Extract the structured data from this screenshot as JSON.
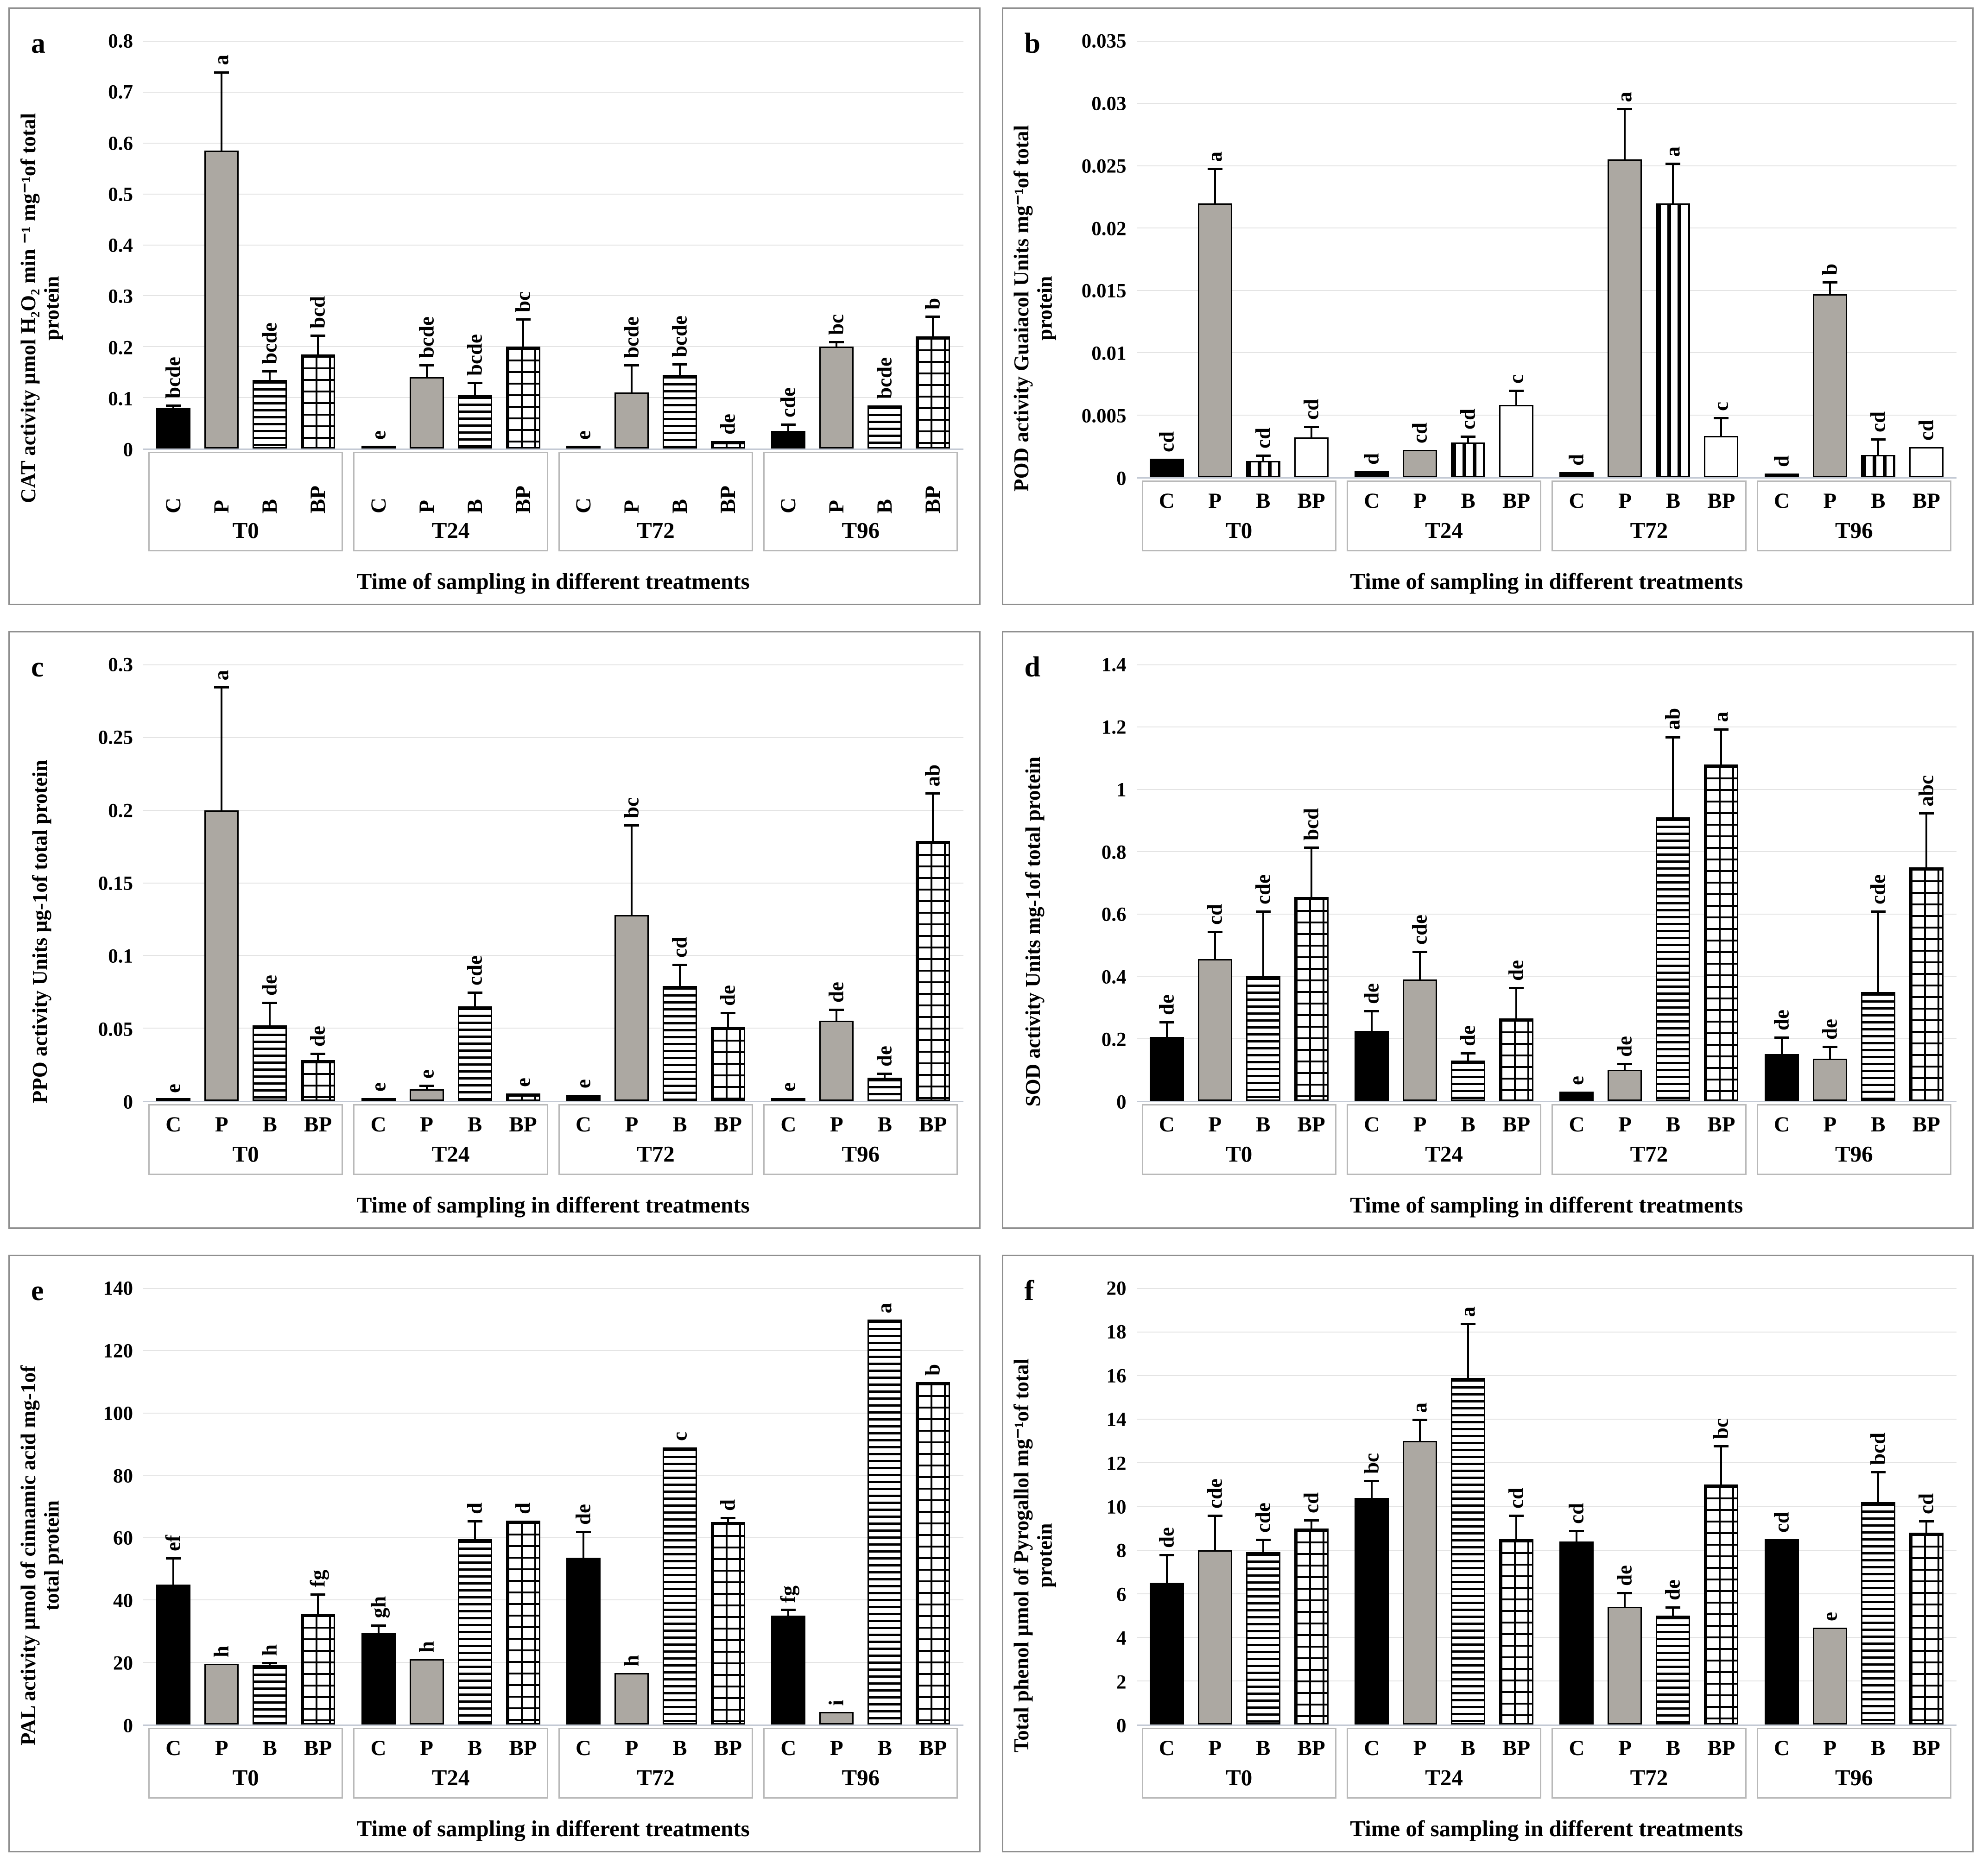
{
  "figure": {
    "x_axis_title": "Time of sampling in different treatments",
    "treatments": [
      "C",
      "P",
      "B",
      "BP"
    ],
    "time_groups": [
      "T0",
      "T24",
      "T72",
      "T96"
    ],
    "colors": {
      "bar_black": "#000000",
      "bar_gray": "#ACA8A2",
      "gridline": "#E4E4E4",
      "axis_line": "#C3C9D4",
      "panel_border": "#8F8F8F",
      "group_box_border": "#B9B9B9"
    }
  },
  "chart_data": [
    {
      "id": "a",
      "type": "bar",
      "ylabel": "CAT activity µmol H₂O₂ min ⁻¹ mg⁻¹of total\nprotein",
      "xlabel": "Time of sampling in different treatments",
      "ymax": 0.8,
      "yticks": [
        "0",
        "0.1",
        "0.2",
        "0.3",
        "0.4",
        "0.5",
        "0.6",
        "0.7",
        "0.8"
      ],
      "rotated_x_labels": true,
      "patterns": {
        "C": "black",
        "P": "gray",
        "B": "hstripe",
        "BP": "brick"
      },
      "groups": [
        {
          "label": "T0",
          "bars": [
            {
              "treatment": "C",
              "value": 0.08,
              "err": 0.006,
              "letter": "bcde"
            },
            {
              "treatment": "P",
              "value": 0.585,
              "err": 0.155,
              "letter": "a"
            },
            {
              "treatment": "B",
              "value": 0.135,
              "err": 0.018,
              "letter": "bcde"
            },
            {
              "treatment": "BP",
              "value": 0.185,
              "err": 0.038,
              "letter": "bcd"
            }
          ]
        },
        {
          "label": "T24",
          "bars": [
            {
              "treatment": "C",
              "value": 0.005,
              "err": 0,
              "letter": "e"
            },
            {
              "treatment": "P",
              "value": 0.14,
              "err": 0.025,
              "letter": "bcde"
            },
            {
              "treatment": "B",
              "value": 0.105,
              "err": 0.025,
              "letter": "bcde"
            },
            {
              "treatment": "BP",
              "value": 0.2,
              "err": 0.055,
              "letter": "bc"
            }
          ]
        },
        {
          "label": "T72",
          "bars": [
            {
              "treatment": "C",
              "value": 0.005,
              "err": 0,
              "letter": "e"
            },
            {
              "treatment": "P",
              "value": 0.11,
              "err": 0.055,
              "letter": "bcde"
            },
            {
              "treatment": "B",
              "value": 0.145,
              "err": 0.022,
              "letter": "bcde"
            },
            {
              "treatment": "BP",
              "value": 0.015,
              "err": 0,
              "letter": "de"
            }
          ]
        },
        {
          "label": "T96",
          "bars": [
            {
              "treatment": "C",
              "value": 0.035,
              "err": 0.013,
              "letter": "cde"
            },
            {
              "treatment": "P",
              "value": 0.2,
              "err": 0.01,
              "letter": "bc"
            },
            {
              "treatment": "B",
              "value": 0.085,
              "err": 0,
              "letter": "bcde"
            },
            {
              "treatment": "BP",
              "value": 0.22,
              "err": 0.04,
              "letter": "b"
            }
          ]
        }
      ]
    },
    {
      "id": "b",
      "type": "bar",
      "ylabel": "POD activity Guaiacol Units mg⁻¹of total\nprotein",
      "xlabel": "Time of sampling in different treatments",
      "ymax": 0.035,
      "yticks": [
        "0",
        "0.005",
        "0.01",
        "0.015",
        "0.02",
        "0.025",
        "0.03",
        "0.035"
      ],
      "rotated_x_labels": false,
      "patterns": {
        "C": "black",
        "P": "gray",
        "B": "vstripe",
        "BP": "white"
      },
      "groups": [
        {
          "label": "T0",
          "bars": [
            {
              "treatment": "C",
              "value": 0.0015,
              "err": 0,
              "letter": "cd"
            },
            {
              "treatment": "P",
              "value": 0.022,
              "err": 0.0028,
              "letter": "a"
            },
            {
              "treatment": "B",
              "value": 0.0013,
              "err": 0.0005,
              "letter": "cd"
            },
            {
              "treatment": "BP",
              "value": 0.0032,
              "err": 0.0009,
              "letter": "cd"
            }
          ]
        },
        {
          "label": "T24",
          "bars": [
            {
              "treatment": "C",
              "value": 0.0005,
              "err": 0,
              "letter": "d"
            },
            {
              "treatment": "P",
              "value": 0.0022,
              "err": 0,
              "letter": "cd"
            },
            {
              "treatment": "B",
              "value": 0.0028,
              "err": 0.0005,
              "letter": "cd"
            },
            {
              "treatment": "BP",
              "value": 0.0058,
              "err": 0.0012,
              "letter": "c"
            }
          ]
        },
        {
          "label": "T72",
          "bars": [
            {
              "treatment": "C",
              "value": 0.0004,
              "err": 0,
              "letter": "d"
            },
            {
              "treatment": "P",
              "value": 0.0255,
              "err": 0.0041,
              "letter": "a"
            },
            {
              "treatment": "B",
              "value": 0.022,
              "err": 0.0032,
              "letter": "a"
            },
            {
              "treatment": "BP",
              "value": 0.0033,
              "err": 0.0015,
              "letter": "c"
            }
          ]
        },
        {
          "label": "T96",
          "bars": [
            {
              "treatment": "C",
              "value": 0.0003,
              "err": 0,
              "letter": "d"
            },
            {
              "treatment": "P",
              "value": 0.0147,
              "err": 0.001,
              "letter": "b"
            },
            {
              "treatment": "B",
              "value": 0.0018,
              "err": 0.0013,
              "letter": "cd"
            },
            {
              "treatment": "BP",
              "value": 0.0024,
              "err": 0,
              "letter": "cd"
            }
          ]
        }
      ]
    },
    {
      "id": "c",
      "type": "bar",
      "ylabel": "PPO activity Units µg-1of total protein",
      "xlabel": "Time of sampling in different treatments",
      "ymax": 0.3,
      "yticks": [
        "0",
        "0.05",
        "0.1",
        "0.15",
        "0.2",
        "0.25",
        "0.3"
      ],
      "rotated_x_labels": false,
      "patterns": {
        "C": "black",
        "P": "gray",
        "B": "hstripe",
        "BP": "brick"
      },
      "groups": [
        {
          "label": "T0",
          "bars": [
            {
              "treatment": "C",
              "value": 0.001,
              "err": 0,
              "letter": "e"
            },
            {
              "treatment": "P",
              "value": 0.2,
              "err": 0.085,
              "letter": "a"
            },
            {
              "treatment": "B",
              "value": 0.052,
              "err": 0.016,
              "letter": "de"
            },
            {
              "treatment": "BP",
              "value": 0.028,
              "err": 0.005,
              "letter": "de"
            }
          ]
        },
        {
          "label": "T24",
          "bars": [
            {
              "treatment": "C",
              "value": 0.002,
              "err": 0,
              "letter": "e"
            },
            {
              "treatment": "P",
              "value": 0.008,
              "err": 0.003,
              "letter": "e"
            },
            {
              "treatment": "B",
              "value": 0.065,
              "err": 0.01,
              "letter": "cde"
            },
            {
              "treatment": "BP",
              "value": 0.005,
              "err": 0,
              "letter": "e"
            }
          ]
        },
        {
          "label": "T72",
          "bars": [
            {
              "treatment": "C",
              "value": 0.004,
              "err": 0,
              "letter": "e"
            },
            {
              "treatment": "P",
              "value": 0.128,
              "err": 0.062,
              "letter": "bc"
            },
            {
              "treatment": "B",
              "value": 0.079,
              "err": 0.015,
              "letter": "cd"
            },
            {
              "treatment": "BP",
              "value": 0.051,
              "err": 0.01,
              "letter": "de"
            }
          ]
        },
        {
          "label": "T96",
          "bars": [
            {
              "treatment": "C",
              "value": 0.002,
              "err": 0,
              "letter": "e"
            },
            {
              "treatment": "P",
              "value": 0.055,
              "err": 0.008,
              "letter": "de"
            },
            {
              "treatment": "B",
              "value": 0.016,
              "err": 0.003,
              "letter": "de"
            },
            {
              "treatment": "BP",
              "value": 0.179,
              "err": 0.033,
              "letter": "ab"
            }
          ]
        }
      ]
    },
    {
      "id": "d",
      "type": "bar",
      "ylabel": "SOD activity Units mg-1of total protein",
      "xlabel": "Time of sampling in different treatments",
      "ymax": 1.4,
      "yticks": [
        "0",
        "0.2",
        "0.4",
        "0.6",
        "0.8",
        "1",
        "1.2",
        "1.4"
      ],
      "rotated_x_labels": false,
      "patterns": {
        "C": "black",
        "P": "gray",
        "B": "hstripe",
        "BP": "brick"
      },
      "groups": [
        {
          "label": "T0",
          "bars": [
            {
              "treatment": "C",
              "value": 0.205,
              "err": 0.05,
              "letter": "de"
            },
            {
              "treatment": "P",
              "value": 0.455,
              "err": 0.09,
              "letter": "cd"
            },
            {
              "treatment": "B",
              "value": 0.4,
              "err": 0.21,
              "letter": "cde"
            },
            {
              "treatment": "BP",
              "value": 0.655,
              "err": 0.16,
              "letter": "bcd"
            }
          ]
        },
        {
          "label": "T24",
          "bars": [
            {
              "treatment": "C",
              "value": 0.225,
              "err": 0.065,
              "letter": "de"
            },
            {
              "treatment": "P",
              "value": 0.39,
              "err": 0.09,
              "letter": "cde"
            },
            {
              "treatment": "B",
              "value": 0.13,
              "err": 0.025,
              "letter": "de"
            },
            {
              "treatment": "BP",
              "value": 0.265,
              "err": 0.1,
              "letter": "de"
            }
          ]
        },
        {
          "label": "T72",
          "bars": [
            {
              "treatment": "C",
              "value": 0.03,
              "err": 0,
              "letter": "e"
            },
            {
              "treatment": "P",
              "value": 0.1,
              "err": 0.02,
              "letter": "de"
            },
            {
              "treatment": "B",
              "value": 0.91,
              "err": 0.26,
              "letter": "ab"
            },
            {
              "treatment": "BP",
              "value": 1.08,
              "err": 0.115,
              "letter": "a"
            }
          ]
        },
        {
          "label": "T96",
          "bars": [
            {
              "treatment": "C",
              "value": 0.15,
              "err": 0.055,
              "letter": "de"
            },
            {
              "treatment": "P",
              "value": 0.135,
              "err": 0.04,
              "letter": "de"
            },
            {
              "treatment": "B",
              "value": 0.35,
              "err": 0.26,
              "letter": "cde"
            },
            {
              "treatment": "BP",
              "value": 0.75,
              "err": 0.175,
              "letter": "abc"
            }
          ]
        }
      ]
    },
    {
      "id": "e",
      "type": "bar",
      "ylabel": "PAL activity µmol of cinnamic acid mg-1of\ntotal protein",
      "xlabel": "Time of sampling in different treatments",
      "ymax": 140,
      "yticks": [
        "0",
        "20",
        "40",
        "60",
        "80",
        "100",
        "120",
        "140"
      ],
      "rotated_x_labels": false,
      "patterns": {
        "C": "black",
        "P": "gray",
        "B": "hstripe",
        "BP": "brick"
      },
      "groups": [
        {
          "label": "T0",
          "bars": [
            {
              "treatment": "C",
              "value": 45,
              "err": 8.5,
              "letter": "ef"
            },
            {
              "treatment": "P",
              "value": 19.5,
              "err": 0,
              "letter": "h"
            },
            {
              "treatment": "B",
              "value": 19,
              "err": 1,
              "letter": "h"
            },
            {
              "treatment": "BP",
              "value": 35.5,
              "err": 6.5,
              "letter": "fg"
            }
          ]
        },
        {
          "label": "T24",
          "bars": [
            {
              "treatment": "C",
              "value": 29.5,
              "err": 2.5,
              "letter": "gh"
            },
            {
              "treatment": "P",
              "value": 21,
              "err": 0,
              "letter": "h"
            },
            {
              "treatment": "B",
              "value": 59.5,
              "err": 6,
              "letter": "d"
            },
            {
              "treatment": "BP",
              "value": 65.5,
              "err": 0,
              "letter": "d"
            }
          ]
        },
        {
          "label": "T72",
          "bars": [
            {
              "treatment": "C",
              "value": 53.5,
              "err": 8.5,
              "letter": "de"
            },
            {
              "treatment": "P",
              "value": 16.5,
              "err": 0,
              "letter": "h"
            },
            {
              "treatment": "B",
              "value": 89,
              "err": 0,
              "letter": "c"
            },
            {
              "treatment": "BP",
              "value": 65,
              "err": 1.5,
              "letter": "d"
            }
          ]
        },
        {
          "label": "T96",
          "bars": [
            {
              "treatment": "C",
              "value": 35,
              "err": 2,
              "letter": "fg"
            },
            {
              "treatment": "P",
              "value": 4,
              "err": 0,
              "letter": "i"
            },
            {
              "treatment": "B",
              "value": 130,
              "err": 0,
              "letter": "a"
            },
            {
              "treatment": "BP",
              "value": 110,
              "err": 0,
              "letter": "b"
            }
          ]
        }
      ]
    },
    {
      "id": "f",
      "type": "bar",
      "ylabel": "Total phenol µmol of Pyrogallol mg⁻¹of total\nprotein",
      "xlabel": "Time of sampling in different treatments",
      "ymax": 20,
      "yticks": [
        "0",
        "2",
        "4",
        "6",
        "8",
        "10",
        "12",
        "14",
        "16",
        "18",
        "20"
      ],
      "rotated_x_labels": false,
      "patterns": {
        "C": "black",
        "P": "gray",
        "B": "hstripe",
        "BP": "brick"
      },
      "groups": [
        {
          "label": "T0",
          "bars": [
            {
              "treatment": "C",
              "value": 6.5,
              "err": 1.3,
              "letter": "de"
            },
            {
              "treatment": "P",
              "value": 8,
              "err": 1.6,
              "letter": "cde"
            },
            {
              "treatment": "B",
              "value": 7.9,
              "err": 0.6,
              "letter": "cde"
            },
            {
              "treatment": "BP",
              "value": 9,
              "err": 0.4,
              "letter": "cd"
            }
          ]
        },
        {
          "label": "T24",
          "bars": [
            {
              "treatment": "C",
              "value": 10.4,
              "err": 0.8,
              "letter": "bc"
            },
            {
              "treatment": "P",
              "value": 13,
              "err": 1,
              "letter": "a"
            },
            {
              "treatment": "B",
              "value": 15.9,
              "err": 2.5,
              "letter": "a"
            },
            {
              "treatment": "BP",
              "value": 8.5,
              "err": 1.1,
              "letter": "cd"
            }
          ]
        },
        {
          "label": "T72",
          "bars": [
            {
              "treatment": "C",
              "value": 8.4,
              "err": 0.5,
              "letter": "cd"
            },
            {
              "treatment": "P",
              "value": 5.4,
              "err": 0.65,
              "letter": "de"
            },
            {
              "treatment": "B",
              "value": 5,
              "err": 0.4,
              "letter": "de"
            },
            {
              "treatment": "BP",
              "value": 11,
              "err": 1.8,
              "letter": "bc"
            }
          ]
        },
        {
          "label": "T96",
          "bars": [
            {
              "treatment": "C",
              "value": 8.5,
              "err": 0,
              "letter": "cd"
            },
            {
              "treatment": "P",
              "value": 4.45,
              "err": 0,
              "letter": "e"
            },
            {
              "treatment": "B",
              "value": 10.2,
              "err": 1.4,
              "letter": "bcd"
            },
            {
              "treatment": "BP",
              "value": 8.8,
              "err": 0.55,
              "letter": "cd"
            }
          ]
        }
      ]
    }
  ]
}
